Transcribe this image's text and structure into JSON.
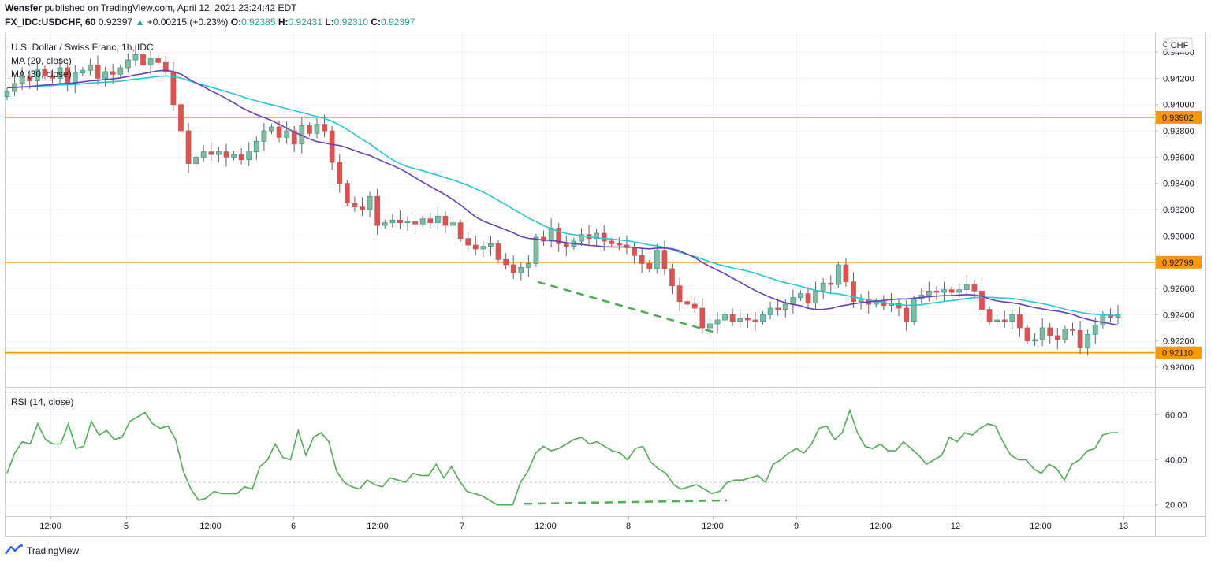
{
  "header": {
    "publisher": "Wensfer",
    "published_text": "published on TradingView.com, April 12, 2021 23:24:42 EDT",
    "symbol": "FX_IDC:USDCHF, 60",
    "last": "0.92397",
    "change": "+0.00215 (+0.23%)",
    "o_label": "O:",
    "o_value": "0.92385",
    "h_label": "H:",
    "h_value": "0.92431",
    "l_label": "L:",
    "l_value": "0.92310",
    "c_label": "C:",
    "c_value": "0.92397"
  },
  "legend": {
    "title": "U.S. Dollar / Swiss Franc, 1h, IDC",
    "ma20": "MA (20, close)",
    "ma30": "MA (30, close)",
    "rsi": "RSI (14, close)"
  },
  "brand": {
    "name": "TradingView",
    "icon": "tradingview-logo-icon"
  },
  "colors": {
    "up": "#26a69a",
    "up_body": "#8bb89a",
    "down": "#d9534f",
    "ma20": "#6a3db8",
    "ma30": "#26c6da",
    "hline": "#ff9800",
    "trend": "#4caf50",
    "rsi": "#4caf50"
  },
  "chart_data": [
    {
      "type": "candlestick",
      "title": "U.S. Dollar / Swiss Franc, 1h, IDC",
      "currency": "CHF",
      "ylim": [
        0.9185,
        0.9455
      ],
      "y_ticks": [
        "0.94400",
        "0.94200",
        "0.94000",
        "0.93800",
        "0.93600",
        "0.93400",
        "0.93200",
        "0.93000",
        "0.92800",
        "0.92600",
        "0.92400",
        "0.92200",
        "0.92000"
      ],
      "x_ticks": [
        "12:00",
        "5",
        "12:00",
        "6",
        "12:00",
        "7",
        "12:00",
        "8",
        "12:00",
        "9",
        "12:00",
        "12",
        "12:00",
        "13"
      ],
      "horizontal_lines": [
        {
          "value": 0.93902,
          "label": "0.93902"
        },
        {
          "value": 0.92799,
          "label": "0.92799"
        },
        {
          "value": 0.9211,
          "label": "0.92110"
        }
      ],
      "trend_line": {
        "from": [
          0.9265,
          "7 12:00"
        ],
        "to": [
          0.9226,
          "8 12:00"
        ]
      },
      "closes": [
        0.941,
        0.9416,
        0.9421,
        0.9418,
        0.9427,
        0.9422,
        0.942,
        0.9428,
        0.9416,
        0.9424,
        0.9426,
        0.943,
        0.942,
        0.9425,
        0.9423,
        0.9428,
        0.9434,
        0.9438,
        0.943,
        0.9435,
        0.9432,
        0.9425,
        0.94,
        0.938,
        0.9355,
        0.936,
        0.9364,
        0.9362,
        0.9364,
        0.936,
        0.9362,
        0.9358,
        0.9364,
        0.9372,
        0.938,
        0.9383,
        0.9375,
        0.938,
        0.937,
        0.9384,
        0.9378,
        0.9385,
        0.938,
        0.9356,
        0.934,
        0.9325,
        0.9322,
        0.932,
        0.933,
        0.9308,
        0.931,
        0.9312,
        0.931,
        0.9311,
        0.9309,
        0.9313,
        0.931,
        0.9315,
        0.9308,
        0.931,
        0.9298,
        0.9293,
        0.929,
        0.9292,
        0.9294,
        0.9282,
        0.9278,
        0.9272,
        0.9276,
        0.9279,
        0.9299,
        0.9296,
        0.9306,
        0.9294,
        0.9292,
        0.9296,
        0.9301,
        0.9298,
        0.9302,
        0.9296,
        0.9294,
        0.9293,
        0.9291,
        0.9285,
        0.9279,
        0.9275,
        0.9289,
        0.9275,
        0.9262,
        0.925,
        0.9248,
        0.9245,
        0.923,
        0.9233,
        0.9236,
        0.924,
        0.9235,
        0.9237,
        0.9236,
        0.9235,
        0.924,
        0.9245,
        0.9244,
        0.9248,
        0.9253,
        0.9256,
        0.9249,
        0.9258,
        0.9264,
        0.9263,
        0.9278,
        0.9265,
        0.925,
        0.9252,
        0.9248,
        0.925,
        0.9247,
        0.9249,
        0.9245,
        0.9235,
        0.9252,
        0.9255,
        0.9258,
        0.9257,
        0.9259,
        0.9257,
        0.9259,
        0.9263,
        0.9258,
        0.9244,
        0.9235,
        0.9236,
        0.9235,
        0.924,
        0.923,
        0.922,
        0.9221,
        0.923,
        0.9224,
        0.9221,
        0.9229,
        0.9228,
        0.9215,
        0.9225,
        0.9232,
        0.924,
        0.9238,
        0.924
      ],
      "series": [
        {
          "name": "MA (20, close)",
          "color": "#6a3db8"
        },
        {
          "name": "MA (30, close)",
          "color": "#26c6da"
        }
      ]
    },
    {
      "type": "line",
      "title": "RSI (14, close)",
      "ylim": [
        15,
        72
      ],
      "y_ticks": [
        "60.00",
        "40.00",
        "20.00"
      ],
      "bands": [
        70,
        30
      ],
      "trend_line": {
        "from": [
          20.5,
          "7 12:00"
        ],
        "to": [
          22,
          "8 12:00"
        ]
      },
      "values": [
        34,
        43,
        48,
        47,
        56,
        49,
        47,
        47,
        56,
        45,
        46,
        57,
        51,
        53,
        49,
        50,
        57,
        59,
        61,
        56,
        54,
        55,
        49,
        35,
        27,
        22,
        23,
        26,
        25,
        25,
        25,
        28,
        27,
        37,
        40,
        47,
        41,
        40,
        53,
        42,
        50,
        52,
        48,
        35,
        30,
        28,
        27,
        31,
        29,
        28,
        32,
        31,
        30,
        34,
        33,
        33,
        38,
        32,
        37,
        31,
        26,
        25,
        24,
        22,
        20,
        20,
        20,
        30,
        35,
        43,
        46,
        44,
        45,
        47,
        49,
        50,
        47,
        48,
        46,
        44,
        43,
        40,
        45,
        46,
        39,
        36,
        34,
        29,
        27,
        28,
        29,
        27,
        25,
        26,
        30,
        31,
        31,
        32,
        33,
        30,
        38,
        40,
        43,
        45,
        43,
        47,
        54,
        55,
        49,
        52,
        62,
        52,
        46,
        45,
        47,
        44,
        44,
        48,
        45,
        42,
        38,
        40,
        42,
        50,
        48,
        52,
        51,
        54,
        56,
        55,
        48,
        42,
        40,
        40,
        36,
        34,
        38,
        36,
        31,
        38,
        40,
        44,
        45,
        51,
        52,
        52
      ]
    }
  ]
}
